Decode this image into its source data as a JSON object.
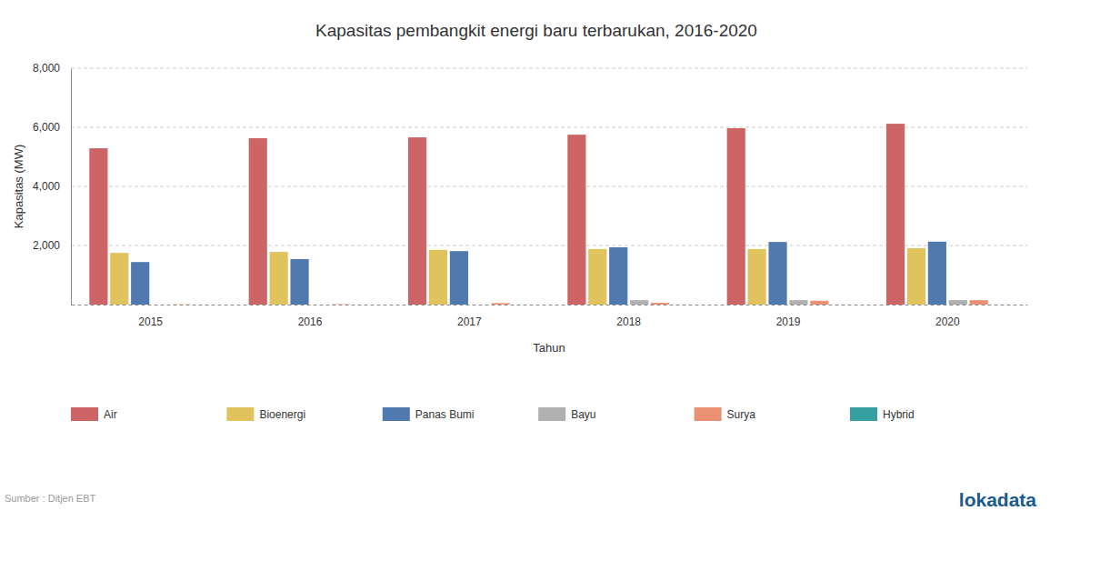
{
  "chart_data": {
    "type": "bar",
    "title": "Kapasitas pembangkit energi baru terbarukan, 2016-2020",
    "x_label": "Tahun",
    "y_label": "Kapasitas (MW)",
    "source": "Sumber : Ditjen EBT",
    "logo": "lokadata",
    "categories": [
      "2015",
      "2016",
      "2017",
      "2018",
      "2019",
      "2020"
    ],
    "series": [
      {
        "name": "Air",
        "color": "#cd6566",
        "values": [
          5290,
          5630,
          5660,
          5750,
          5970,
          6120
        ]
      },
      {
        "name": "Bioenergi",
        "color": "#e0c35c",
        "values": [
          1750,
          1780,
          1850,
          1880,
          1880,
          1910
        ]
      },
      {
        "name": "Panas Bumi",
        "color": "#5079b0",
        "values": [
          1440,
          1540,
          1810,
          1940,
          2120,
          2130
        ]
      },
      {
        "name": "Bayu",
        "color": "#b0b0b0",
        "values": [
          1,
          1,
          1,
          150,
          150,
          150
        ]
      },
      {
        "name": "Surya",
        "color": "#ea9173",
        "values": [
          10,
          15,
          50,
          60,
          130,
          150
        ]
      },
      {
        "name": "Hybrid",
        "color": "#36a0a0",
        "values": [
          1,
          1,
          2,
          3,
          3,
          3
        ]
      }
    ],
    "ylim": [
      0,
      8000
    ],
    "yticks": [
      {
        "value": 2000,
        "label": "2,000"
      },
      {
        "value": 4000,
        "label": "4,000"
      },
      {
        "value": 6000,
        "label": "6,000"
      },
      {
        "value": 8000,
        "label": "8,000"
      }
    ],
    "grid": true,
    "legend": "bottom"
  }
}
